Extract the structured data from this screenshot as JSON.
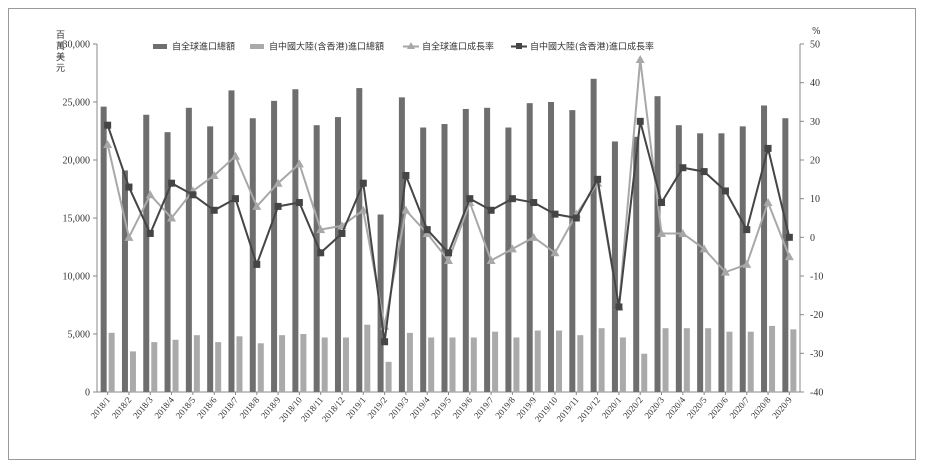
{
  "chart_data": {
    "type": "bar",
    "title": "",
    "y_left_unit": [
      "百",
      "萬",
      "美",
      "元"
    ],
    "y_right_unit": "%",
    "y_left_range": [
      0,
      30000
    ],
    "y_left_ticks": [
      "0",
      "5,000",
      "10,000",
      "15,000",
      "20,000",
      "25,000",
      "30,000"
    ],
    "y_right_range": [
      -40,
      50
    ],
    "y_right_ticks": [
      "-40",
      "-30",
      "-20",
      "-10",
      "0",
      "10",
      "20",
      "30",
      "40",
      "50"
    ],
    "grid": false,
    "legend_position": "top",
    "categories": [
      "2018/1",
      "2018/2",
      "2018/3",
      "2018/4",
      "2018/5",
      "2018/6",
      "2018/7",
      "2018/8",
      "2018/9",
      "2018/10",
      "2018/11",
      "2018/12",
      "2019/1",
      "2019/2",
      "2019/3",
      "2019/4",
      "2019/5",
      "2019/6",
      "2019/7",
      "2019/8",
      "2019/9",
      "2019/10",
      "2019/11",
      "2019/12",
      "2020/1",
      "2020/2",
      "2020/3",
      "2020/4",
      "2020/5",
      "2020/6",
      "2020/7",
      "2020/8",
      "2020/9"
    ],
    "series": [
      {
        "name": "自全球進口總額",
        "kind": "bar",
        "axis": "left",
        "color": "#6e6e6e",
        "values": [
          24600,
          19100,
          23900,
          22400,
          24500,
          22900,
          26000,
          23600,
          25100,
          26100,
          23000,
          23700,
          26200,
          15300,
          25400,
          22800,
          23100,
          24400,
          24500,
          22800,
          24900,
          25000,
          24300,
          27000,
          21600,
          22000,
          25500,
          23000,
          22300,
          22300,
          22900,
          24700,
          23600
        ]
      },
      {
        "name": "自中國大陸(含香港)進口總額",
        "kind": "bar",
        "axis": "left",
        "color": "#aaaaaa",
        "values": [
          5100,
          3500,
          4300,
          4500,
          4900,
          4300,
          4800,
          4200,
          4900,
          5000,
          4700,
          4700,
          5800,
          2600,
          5100,
          4700,
          4700,
          4700,
          5200,
          4700,
          5300,
          5300,
          4900,
          5500,
          4700,
          3300,
          5500,
          5500,
          5500,
          5200,
          5200,
          5700,
          5400
        ]
      },
      {
        "name": "自全球進口成長率",
        "kind": "line",
        "axis": "right",
        "color": "#a8a8a8",
        "marker": "triangle",
        "values": [
          24,
          0,
          11,
          5,
          12,
          16,
          21,
          8,
          14,
          19,
          2,
          3,
          7,
          -23,
          7,
          1,
          -6,
          9,
          -6,
          -3,
          0,
          -4,
          6,
          14,
          -18,
          46,
          1,
          1,
          -3,
          -9,
          -7,
          9,
          -5
        ]
      },
      {
        "name": "自中國大陸(含香港)進口成長率",
        "kind": "line",
        "axis": "right",
        "color": "#454545",
        "marker": "square",
        "values": [
          29,
          13,
          1,
          14,
          11,
          7,
          10,
          -7,
          8,
          9,
          -4,
          1,
          14,
          -27,
          16,
          2,
          -4,
          10,
          7,
          10,
          9,
          6,
          5,
          15,
          -18,
          30,
          9,
          18,
          17,
          12,
          2,
          23,
          0
        ]
      }
    ]
  }
}
